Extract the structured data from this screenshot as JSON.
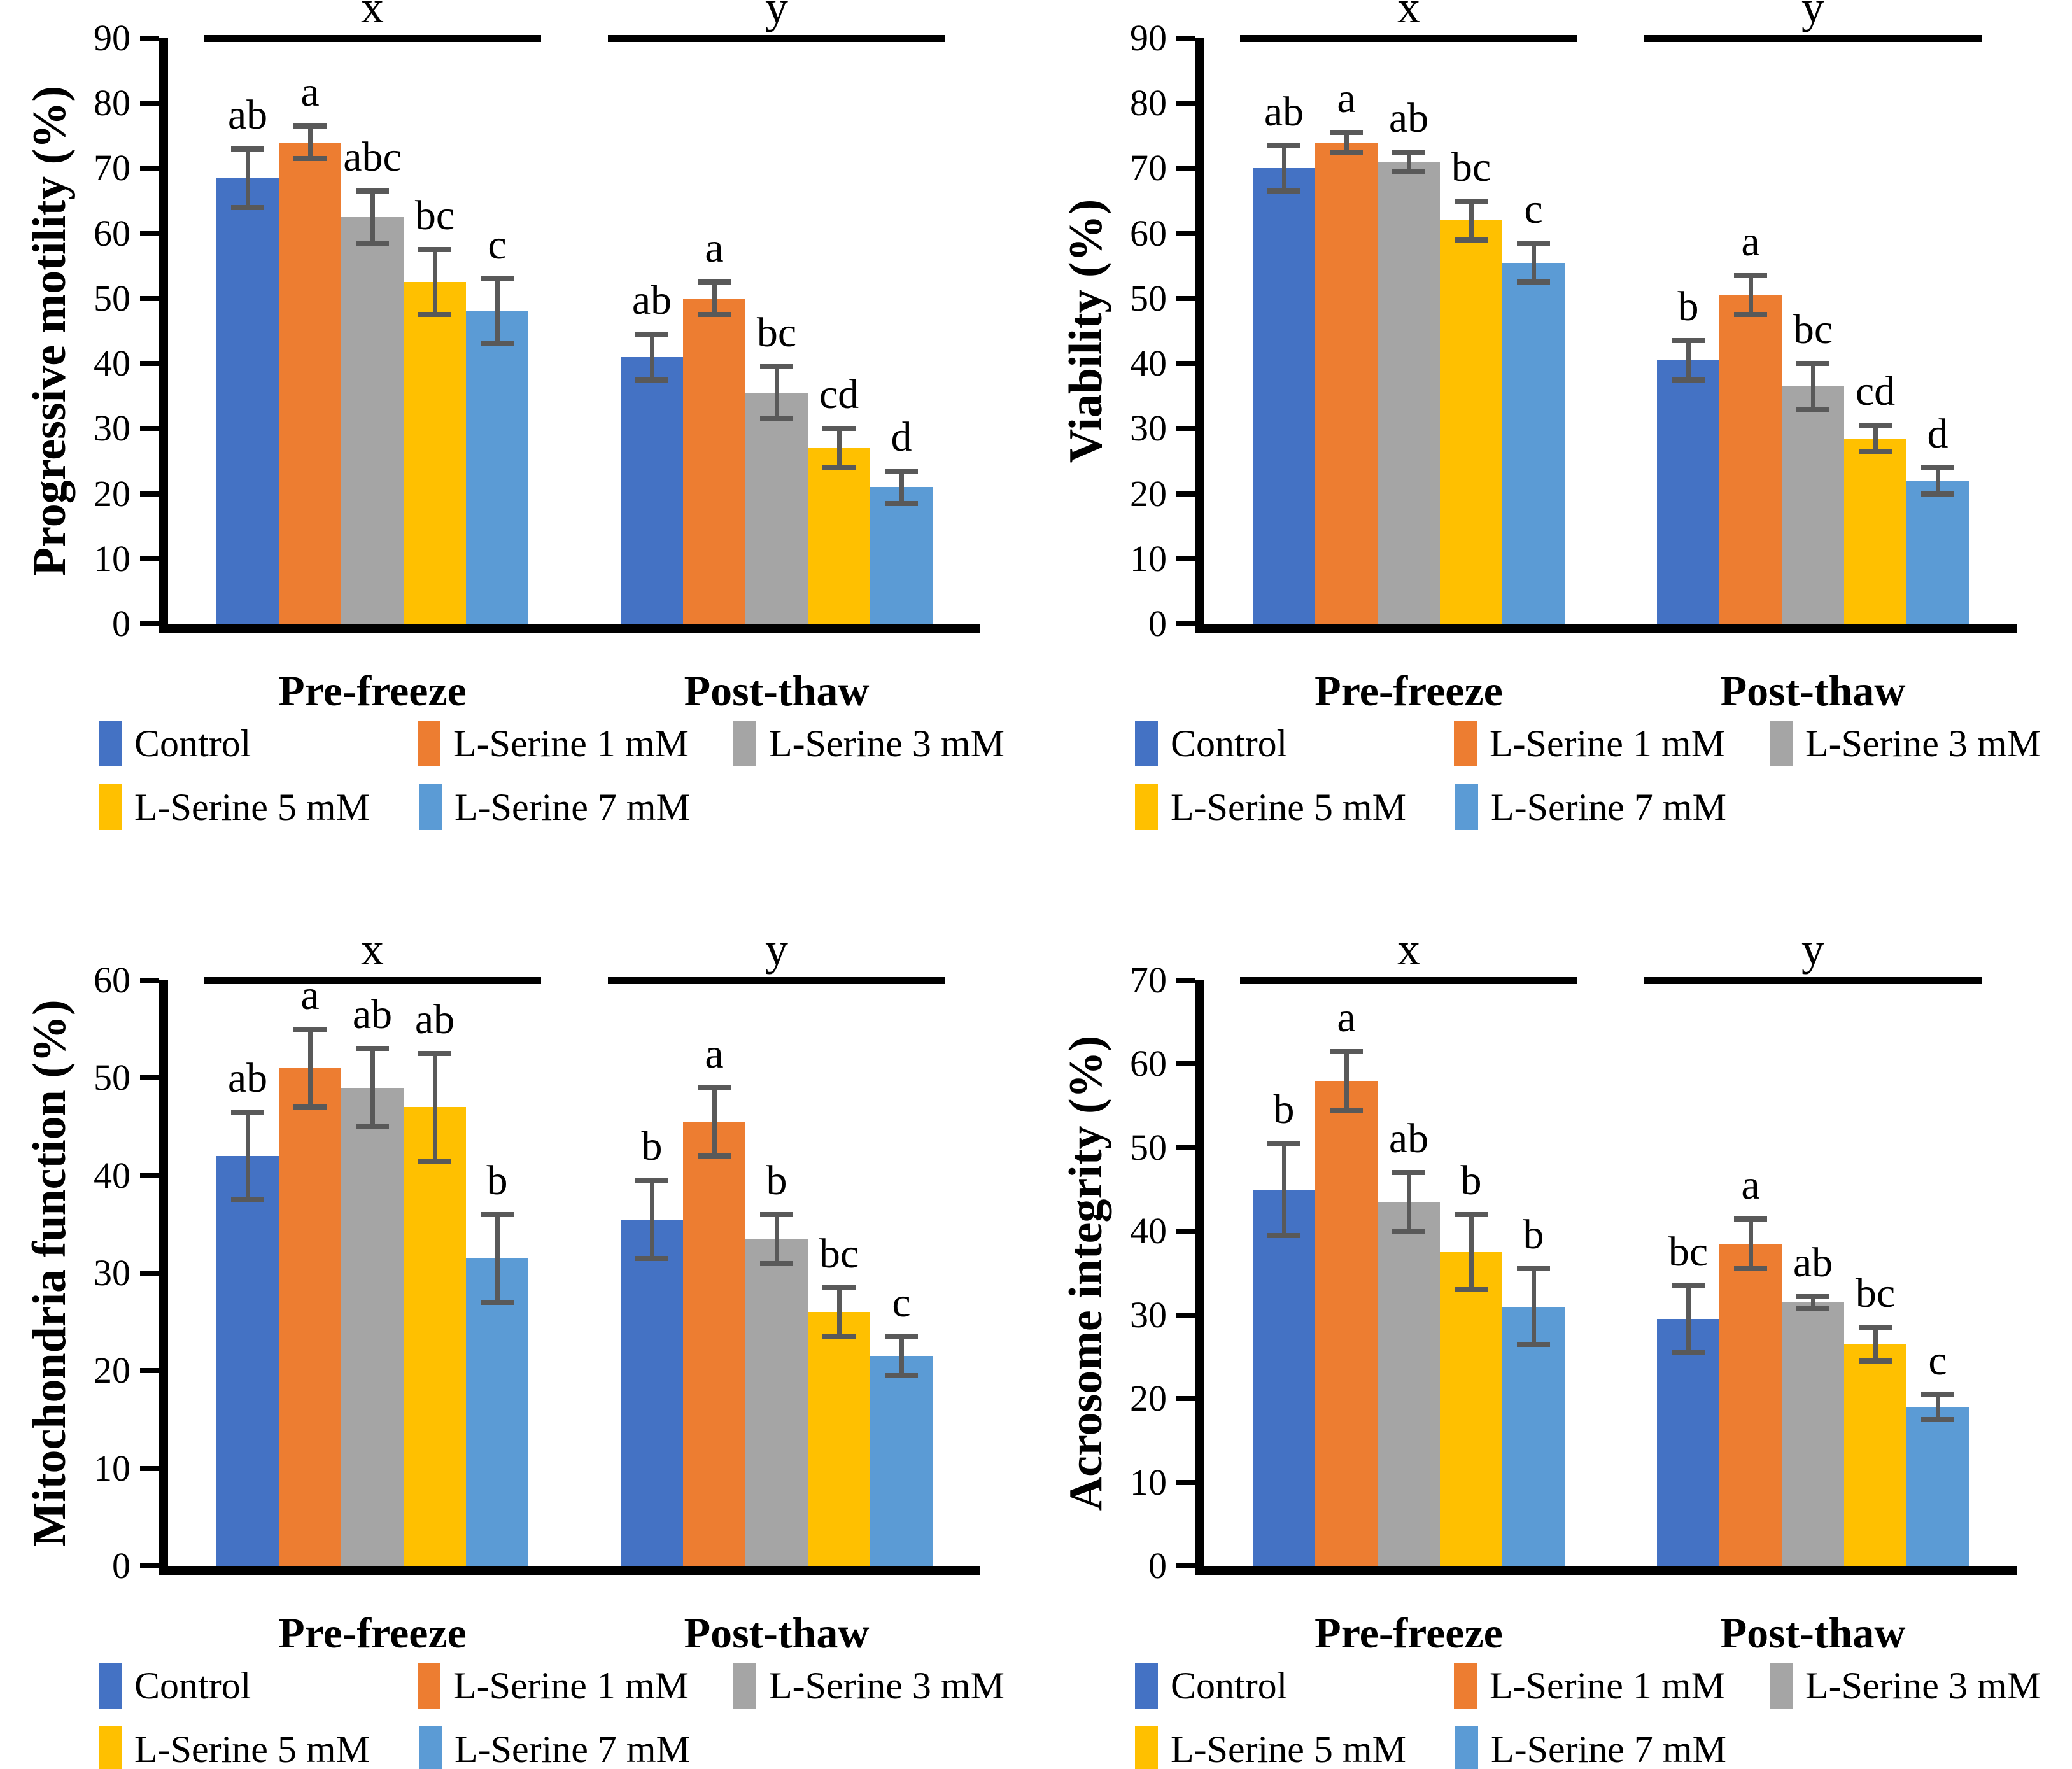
{
  "figure": {
    "group_labels": [
      "Pre-freeze",
      "Post-thaw"
    ],
    "significance_labels": [
      "x",
      "y"
    ],
    "legend": [
      "Control",
      "L-Serine 1 mM",
      "L-Serine 3 mM",
      "L-Serine 5 mM",
      "L-Serine 7 mM"
    ],
    "colors": {
      "series": [
        "#4472C4",
        "#ED7D31",
        "#A5A5A5",
        "#FFC000",
        "#5B9BD5"
      ],
      "error_bar": "#595959",
      "axis": "#000000",
      "text": "#000000"
    }
  },
  "chart_data": [
    {
      "type": "bar",
      "ylabel": "Progressive motility (%)",
      "ylim": [
        0,
        90
      ],
      "ytick_step": 10,
      "grid": false,
      "legend_position": "bottom",
      "categories": [
        "Pre-freeze",
        "Post-thaw"
      ],
      "group_significance": [
        "x",
        "y"
      ],
      "series": [
        {
          "name": "Control",
          "values": [
            68.5,
            41
          ],
          "errors": [
            4.5,
            3.5
          ],
          "letters": [
            "ab",
            "ab"
          ]
        },
        {
          "name": "L-Serine 1 mM",
          "values": [
            74,
            50
          ],
          "errors": [
            2.5,
            2.5
          ],
          "letters": [
            "a",
            "a"
          ]
        },
        {
          "name": "L-Serine 3 mM",
          "values": [
            62.5,
            35.5
          ],
          "errors": [
            4,
            4
          ],
          "letters": [
            "abc",
            "bc"
          ]
        },
        {
          "name": "L-Serine 5 mM",
          "values": [
            52.5,
            27
          ],
          "errors": [
            5,
            3
          ],
          "letters": [
            "bc",
            "cd"
          ]
        },
        {
          "name": "L-Serine 7 mM",
          "values": [
            48,
            21
          ],
          "errors": [
            5,
            2.5
          ],
          "letters": [
            "c",
            "d"
          ]
        }
      ]
    },
    {
      "type": "bar",
      "ylabel": "Viability (%)",
      "ylim": [
        0,
        90
      ],
      "ytick_step": 10,
      "grid": false,
      "legend_position": "bottom",
      "categories": [
        "Pre-freeze",
        "Post-thaw"
      ],
      "group_significance": [
        "x",
        "y"
      ],
      "series": [
        {
          "name": "Control",
          "values": [
            70,
            40.5
          ],
          "errors": [
            3.5,
            3
          ],
          "letters": [
            "ab",
            "b"
          ]
        },
        {
          "name": "L-Serine 1 mM",
          "values": [
            74,
            50.5
          ],
          "errors": [
            1.5,
            3
          ],
          "letters": [
            "a",
            "a"
          ]
        },
        {
          "name": "L-Serine 3 mM",
          "values": [
            71,
            36.5
          ],
          "errors": [
            1.5,
            3.5
          ],
          "letters": [
            "ab",
            "bc"
          ]
        },
        {
          "name": "L-Serine 5 mM",
          "values": [
            62,
            28.5
          ],
          "errors": [
            3,
            2
          ],
          "letters": [
            "bc",
            "cd"
          ]
        },
        {
          "name": "L-Serine 7 mM",
          "values": [
            55.5,
            22
          ],
          "errors": [
            3,
            2
          ],
          "letters": [
            "c",
            "d"
          ]
        }
      ]
    },
    {
      "type": "bar",
      "ylabel": "Mitochondria function (%)",
      "ylim": [
        0,
        60
      ],
      "ytick_step": 10,
      "grid": false,
      "legend_position": "bottom",
      "categories": [
        "Pre-freeze",
        "Post-thaw"
      ],
      "group_significance": [
        "x",
        "y"
      ],
      "series": [
        {
          "name": "Control",
          "values": [
            42,
            35.5
          ],
          "errors": [
            4.5,
            4
          ],
          "letters": [
            "ab",
            "b"
          ]
        },
        {
          "name": "L-Serine 1 mM",
          "values": [
            51,
            45.5
          ],
          "errors": [
            4,
            3.5
          ],
          "letters": [
            "a",
            "a"
          ]
        },
        {
          "name": "L-Serine 3 mM",
          "values": [
            49,
            33.5
          ],
          "errors": [
            4,
            2.5
          ],
          "letters": [
            "ab",
            "b"
          ]
        },
        {
          "name": "L-Serine 5 mM",
          "values": [
            47,
            26
          ],
          "errors": [
            5.5,
            2.5
          ],
          "letters": [
            "ab",
            "bc"
          ]
        },
        {
          "name": "L-Serine 7 mM",
          "values": [
            31.5,
            21.5
          ],
          "errors": [
            4.5,
            2
          ],
          "letters": [
            "b",
            "c"
          ]
        }
      ]
    },
    {
      "type": "bar",
      "ylabel": "Acrosome integrity (%)",
      "ylim": [
        0,
        70
      ],
      "ytick_step": 10,
      "grid": false,
      "legend_position": "bottom",
      "categories": [
        "Pre-freeze",
        "Post-thaw"
      ],
      "group_significance": [
        "x",
        "y"
      ],
      "series": [
        {
          "name": "Control",
          "values": [
            45,
            29.5
          ],
          "errors": [
            5.5,
            4
          ],
          "letters": [
            "b",
            "bc"
          ]
        },
        {
          "name": "L-Serine 1 mM",
          "values": [
            58,
            38.5
          ],
          "errors": [
            3.5,
            3
          ],
          "letters": [
            "a",
            "a"
          ]
        },
        {
          "name": "L-Serine 3 mM",
          "values": [
            43.5,
            31.5
          ],
          "errors": [
            3.5,
            0.7
          ],
          "letters": [
            "ab",
            "ab"
          ]
        },
        {
          "name": "L-Serine 5 mM",
          "values": [
            37.5,
            26.5
          ],
          "errors": [
            4.5,
            2
          ],
          "letters": [
            "b",
            "bc"
          ]
        },
        {
          "name": "L-Serine 7 mM",
          "values": [
            31,
            19
          ],
          "errors": [
            4.5,
            1.5
          ],
          "letters": [
            "b",
            "c"
          ]
        }
      ]
    }
  ]
}
